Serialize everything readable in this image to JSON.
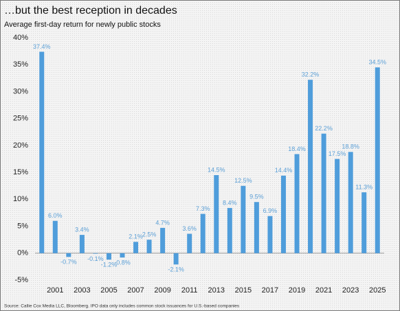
{
  "chart_data": {
    "type": "bar",
    "title": "…but the best reception in decades",
    "subtitle": "Average first-day return for newly public stocks",
    "source": "Source: Callie Cox Media LLC, Bloomberg. IPO data only includes common stock issuances for U.S.-based companies",
    "categories": [
      null,
      "2001",
      null,
      "2003",
      null,
      "2005",
      null,
      "2007",
      null,
      "2009",
      null,
      "2011",
      null,
      "2013",
      null,
      "2015",
      null,
      "2017",
      null,
      "2019",
      null,
      "2021",
      null,
      "2023",
      null,
      "2025"
    ],
    "values": [
      37.4,
      6.0,
      -0.7,
      3.4,
      -0.1,
      -1.2,
      -0.8,
      2.1,
      2.5,
      4.7,
      -2.1,
      3.6,
      7.3,
      14.5,
      8.4,
      12.5,
      9.5,
      6.9,
      14.4,
      18.4,
      32.2,
      22.2,
      17.5,
      18.8,
      11.3,
      34.5
    ],
    "value_labels": [
      "37.4%",
      "6.0%",
      "-0.7%",
      "3.4%",
      "-0.1%",
      "-1.2%",
      "-0.8%",
      "2.1%",
      "2.5%",
      "4.7%",
      "-2.1%",
      "3.6%",
      "7.3%",
      "14.5%",
      "8.4%",
      "12.5%",
      "9.5%",
      "6.9%",
      "14.4%",
      "18.4%",
      "32.2%",
      "22.2%",
      "17.5%",
      "18.8%",
      "11.3%",
      "34.5%"
    ],
    "color": "#4f9ddb",
    "ylim": [
      -5,
      40
    ],
    "yticks": [
      {
        "value": -5,
        "label": "-5%"
      },
      {
        "value": 0,
        "label": "0%"
      },
      {
        "value": 5,
        "label": "5%"
      },
      {
        "value": 10,
        "label": "10%"
      },
      {
        "value": 15,
        "label": "15%"
      },
      {
        "value": 20,
        "label": "20%"
      },
      {
        "value": 25,
        "label": "25%"
      },
      {
        "value": 30,
        "label": "30%"
      },
      {
        "value": 35,
        "label": "35%"
      },
      {
        "value": 40,
        "label": "40%"
      }
    ],
    "grid": false
  }
}
